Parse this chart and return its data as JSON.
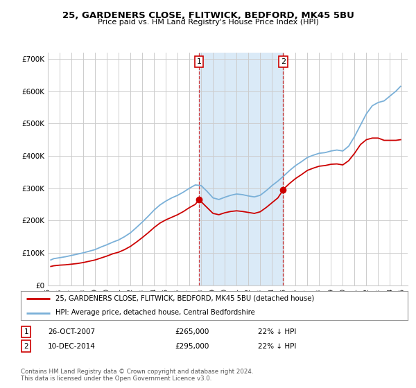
{
  "title": "25, GARDENERS CLOSE, FLITWICK, BEDFORD, MK45 5BU",
  "subtitle": "Price paid vs. HM Land Registry's House Price Index (HPI)",
  "background_color": "#ffffff",
  "plot_background": "#ffffff",
  "grid_color": "#cccccc",
  "hpi_color": "#7ab0d8",
  "price_color": "#cc0000",
  "highlight_bg": "#daeaf7",
  "ylim": [
    0,
    720000
  ],
  "yticks": [
    0,
    100000,
    200000,
    300000,
    400000,
    500000,
    600000,
    700000
  ],
  "ytick_labels": [
    "£0",
    "£100K",
    "£200K",
    "£300K",
    "£400K",
    "£500K",
    "£600K",
    "£700K"
  ],
  "purchase1": {
    "date": "26-OCT-2007",
    "price": 265000,
    "label": "1",
    "hpi_pct": "22% ↓ HPI",
    "x_year": 2007.82
  },
  "purchase2": {
    "date": "10-DEC-2014",
    "price": 295000,
    "label": "2",
    "hpi_pct": "22% ↓ HPI",
    "x_year": 2014.95
  },
  "legend_line1": "25, GARDENERS CLOSE, FLITWICK, BEDFORD, MK45 5BU (detached house)",
  "legend_line2": "HPI: Average price, detached house, Central Bedfordshire",
  "footnote": "Contains HM Land Registry data © Crown copyright and database right 2024.\nThis data is licensed under the Open Government Licence v3.0.",
  "xlim": [
    1995.0,
    2025.5
  ],
  "hpi_x": [
    1995.25,
    1995.5,
    1996.0,
    1996.5,
    1997.0,
    1997.5,
    1998.0,
    1998.5,
    1999.0,
    1999.5,
    2000.0,
    2000.5,
    2001.0,
    2001.5,
    2002.0,
    2002.5,
    2003.0,
    2003.5,
    2004.0,
    2004.5,
    2005.0,
    2005.5,
    2006.0,
    2006.5,
    2007.0,
    2007.5,
    2008.0,
    2008.5,
    2009.0,
    2009.5,
    2010.0,
    2010.5,
    2011.0,
    2011.5,
    2012.0,
    2012.5,
    2013.0,
    2013.5,
    2014.0,
    2014.5,
    2015.0,
    2015.5,
    2016.0,
    2016.5,
    2017.0,
    2017.5,
    2018.0,
    2018.5,
    2019.0,
    2019.5,
    2020.0,
    2020.5,
    2021.0,
    2021.5,
    2022.0,
    2022.5,
    2023.0,
    2023.5,
    2024.0,
    2024.5,
    2024.9
  ],
  "hpi_y": [
    78000,
    82000,
    85000,
    88000,
    92000,
    96000,
    100000,
    105000,
    110000,
    118000,
    125000,
    133000,
    140000,
    150000,
    162000,
    178000,
    195000,
    213000,
    232000,
    248000,
    260000,
    270000,
    278000,
    288000,
    300000,
    310000,
    308000,
    290000,
    270000,
    265000,
    272000,
    278000,
    282000,
    280000,
    276000,
    273000,
    278000,
    292000,
    308000,
    322000,
    338000,
    355000,
    370000,
    382000,
    395000,
    402000,
    408000,
    410000,
    415000,
    418000,
    415000,
    430000,
    460000,
    495000,
    530000,
    555000,
    565000,
    570000,
    585000,
    600000,
    615000
  ],
  "price_x": [
    1995.25,
    1995.5,
    1996.0,
    1996.5,
    1997.0,
    1997.5,
    1998.0,
    1998.5,
    1999.0,
    1999.5,
    2000.0,
    2000.5,
    2001.0,
    2001.5,
    2002.0,
    2002.5,
    2003.0,
    2003.5,
    2004.0,
    2004.5,
    2005.0,
    2005.5,
    2006.0,
    2006.5,
    2007.0,
    2007.5,
    2007.82,
    2008.0,
    2008.5,
    2009.0,
    2009.5,
    2010.0,
    2010.5,
    2011.0,
    2011.5,
    2012.0,
    2012.5,
    2013.0,
    2013.5,
    2014.0,
    2014.5,
    2014.95,
    2015.0,
    2015.5,
    2016.0,
    2016.5,
    2017.0,
    2017.5,
    2018.0,
    2018.5,
    2019.0,
    2019.5,
    2020.0,
    2020.5,
    2021.0,
    2021.5,
    2022.0,
    2022.5,
    2023.0,
    2023.5,
    2024.0,
    2024.5,
    2024.9
  ],
  "price_y": [
    58000,
    60000,
    62000,
    63000,
    65000,
    67000,
    70000,
    74000,
    78000,
    84000,
    90000,
    97000,
    102000,
    110000,
    120000,
    133000,
    147000,
    162000,
    178000,
    192000,
    202000,
    210000,
    218000,
    228000,
    240000,
    250000,
    265000,
    258000,
    240000,
    222000,
    218000,
    224000,
    228000,
    230000,
    228000,
    225000,
    222000,
    227000,
    240000,
    255000,
    270000,
    295000,
    298000,
    315000,
    330000,
    342000,
    355000,
    362000,
    368000,
    370000,
    374000,
    375000,
    372000,
    385000,
    408000,
    435000,
    450000,
    455000,
    455000,
    448000,
    448000,
    448000,
    450000
  ]
}
